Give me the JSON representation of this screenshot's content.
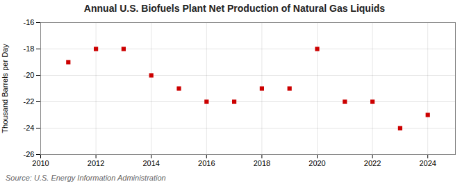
{
  "chart_data": {
    "type": "scatter",
    "title": "Annual U.S. Biofuels Plant Net Production of Natural Gas Liquids",
    "ylabel": "Thousand Barrels per Day",
    "source": "Source: U.S. Energy Information Administration",
    "x": [
      2011,
      2012,
      2013,
      2014,
      2015,
      2016,
      2017,
      2018,
      2019,
      2020,
      2021,
      2022,
      2023,
      2024
    ],
    "values": [
      -19.0,
      -18.0,
      -18.0,
      -20.0,
      -21.0,
      -22.0,
      -22.0,
      -21.0,
      -21.0,
      -18.0,
      -22.0,
      -22.0,
      -24.0,
      -23.0
    ],
    "color": "#cc0000",
    "marker": "square",
    "xlim": [
      2010,
      2025
    ],
    "xticks": [
      2010,
      2012,
      2014,
      2016,
      2018,
      2020,
      2022,
      2024
    ],
    "ylim": [
      -26,
      -16
    ],
    "yticks": [
      -26,
      -24,
      -22,
      -20,
      -18,
      -16
    ],
    "grid": true
  }
}
